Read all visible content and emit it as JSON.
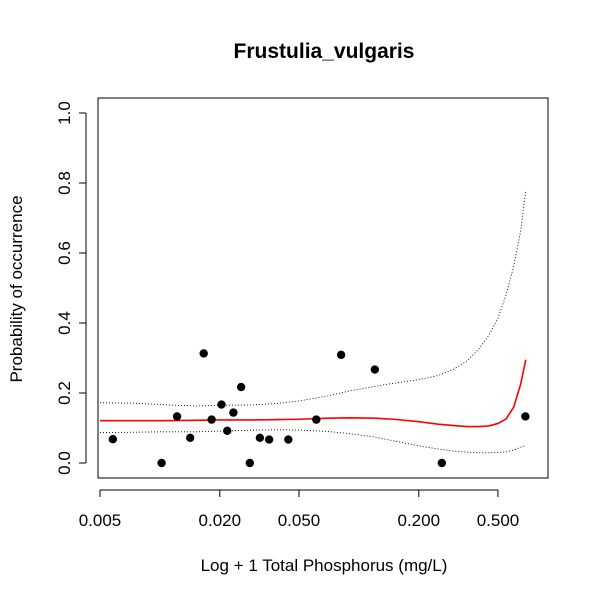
{
  "chart_data": {
    "type": "scatter",
    "title": "Frustulia_vulgaris",
    "xlabel": "Log + 1 Total Phosphorus (mg/L)",
    "ylabel": "Probability of occurrence",
    "x_scale": "log",
    "xlim": [
      0.005,
      0.75
    ],
    "ylim": [
      0.0,
      1.0
    ],
    "x_ticks": [
      0.005,
      0.02,
      0.05,
      0.2,
      0.5
    ],
    "x_tick_labels": [
      "0.005",
      "0.020",
      "0.050",
      "0.200",
      "0.500"
    ],
    "y_ticks": [
      0.0,
      0.2,
      0.4,
      0.6,
      0.8,
      1.0
    ],
    "y_tick_labels": [
      "0.0",
      "0.2",
      "0.4",
      "0.6",
      "0.8",
      "1.0"
    ],
    "grid": false,
    "points": {
      "x": [
        0.0058,
        0.0102,
        0.0122,
        0.0142,
        0.0166,
        0.0182,
        0.0204,
        0.0218,
        0.0234,
        0.0256,
        0.0283,
        0.0318,
        0.0354,
        0.0442,
        0.0611,
        0.0814,
        0.1203,
        0.2611,
        0.6868
      ],
      "y": [
        0.068,
        0.0,
        0.133,
        0.072,
        0.313,
        0.124,
        0.167,
        0.092,
        0.144,
        0.217,
        0.0,
        0.072,
        0.067,
        0.067,
        0.124,
        0.309,
        0.267,
        0.0,
        0.133
      ],
      "color": "#000000"
    },
    "series": [
      {
        "kind": "fit",
        "color": "#ff0000",
        "x": [
          0.005,
          0.0075,
          0.01,
          0.015,
          0.02,
          0.03,
          0.04,
          0.05,
          0.07,
          0.09,
          0.12,
          0.15,
          0.2,
          0.25,
          0.3,
          0.35,
          0.4,
          0.45,
          0.5,
          0.55,
          0.6,
          0.65,
          0.69
        ],
        "y": [
          0.121,
          0.121,
          0.121,
          0.122,
          0.123,
          0.123,
          0.124,
          0.125,
          0.128,
          0.129,
          0.128,
          0.125,
          0.118,
          0.111,
          0.107,
          0.104,
          0.104,
          0.106,
          0.113,
          0.126,
          0.16,
          0.225,
          0.295
        ]
      },
      {
        "kind": "upper-bound",
        "color": "#000000",
        "x": [
          0.005,
          0.0075,
          0.01,
          0.015,
          0.02,
          0.03,
          0.04,
          0.05,
          0.07,
          0.09,
          0.12,
          0.15,
          0.2,
          0.25,
          0.3,
          0.35,
          0.4,
          0.45,
          0.5,
          0.55,
          0.6,
          0.65,
          0.69
        ],
        "y": [
          0.172,
          0.171,
          0.167,
          0.163,
          0.165,
          0.166,
          0.171,
          0.177,
          0.192,
          0.206,
          0.219,
          0.228,
          0.238,
          0.25,
          0.268,
          0.292,
          0.325,
          0.365,
          0.414,
          0.481,
          0.563,
          0.662,
          0.78
        ]
      },
      {
        "kind": "lower-bound",
        "color": "#000000",
        "x": [
          0.005,
          0.0075,
          0.01,
          0.015,
          0.02,
          0.03,
          0.04,
          0.05,
          0.07,
          0.09,
          0.12,
          0.15,
          0.2,
          0.25,
          0.3,
          0.35,
          0.4,
          0.45,
          0.5,
          0.55,
          0.6,
          0.65,
          0.69
        ],
        "y": [
          0.087,
          0.088,
          0.089,
          0.089,
          0.091,
          0.094,
          0.095,
          0.094,
          0.09,
          0.084,
          0.074,
          0.063,
          0.049,
          0.04,
          0.034,
          0.031,
          0.029,
          0.029,
          0.03,
          0.032,
          0.037,
          0.045,
          0.05
        ]
      }
    ]
  }
}
